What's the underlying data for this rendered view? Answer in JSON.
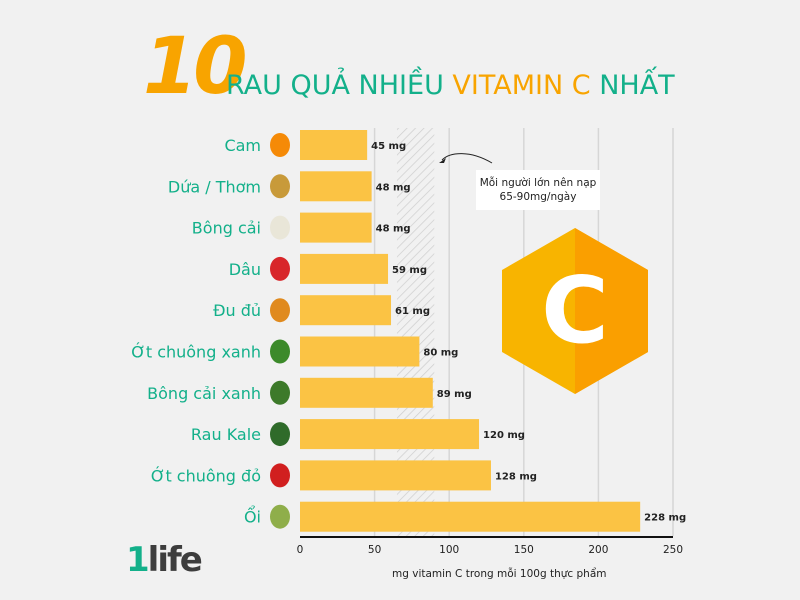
{
  "title": {
    "number": "10",
    "part1": "RAU QUẢ NHIỀU ",
    "highlight": "VITAMIN C",
    "part2": " NHẤT"
  },
  "note": {
    "line1": "Mỗi người lớn nên nạp",
    "line2": "65-90mg/ngày"
  },
  "badge_letter": "C",
  "logo": {
    "one": "1",
    "rest": "life"
  },
  "colors": {
    "bar": "#fbc344",
    "label": "#13b08a",
    "accent": "#f8a400",
    "hexagon": "#f8b400"
  },
  "chart_data": {
    "type": "bar",
    "orientation": "horizontal",
    "categories": [
      "Cam",
      "Dứa / Thơm",
      "Bông cải",
      "Dâu",
      "Đu đủ",
      "Ớt chuông xanh",
      "Bông cải xanh",
      "Rau Kale",
      "Ớt chuông đỏ",
      "Ổi"
    ],
    "icons": [
      "orange-icon",
      "pineapple-icon",
      "cauliflower-icon",
      "strawberry-icon",
      "papaya-icon",
      "green-pepper-icon",
      "broccoli-icon",
      "kale-icon",
      "red-pepper-icon",
      "guava-icon"
    ],
    "icon_colors": [
      "#f58a07",
      "#c89a3a",
      "#e9e6d8",
      "#d8262a",
      "#e08a1e",
      "#3c8a2a",
      "#3d7a2a",
      "#2f6b2a",
      "#d11f1f",
      "#8fae4a"
    ],
    "values": [
      45,
      48,
      48,
      59,
      61,
      80,
      89,
      120,
      128,
      228
    ],
    "value_labels": [
      "45 mg",
      "48 mg",
      "48 mg",
      "59 mg",
      "61 mg",
      "80 mg",
      "89 mg",
      "120 mg",
      "128 mg",
      "228 mg"
    ],
    "xlabel": "mg vitamin C trong mỗi 100g thực phẩm",
    "xlim": [
      0,
      250
    ],
    "xticks": [
      "0",
      "50",
      "100",
      "150",
      "200",
      "250"
    ],
    "recommended_range": [
      65,
      90
    ],
    "grid": true
  }
}
